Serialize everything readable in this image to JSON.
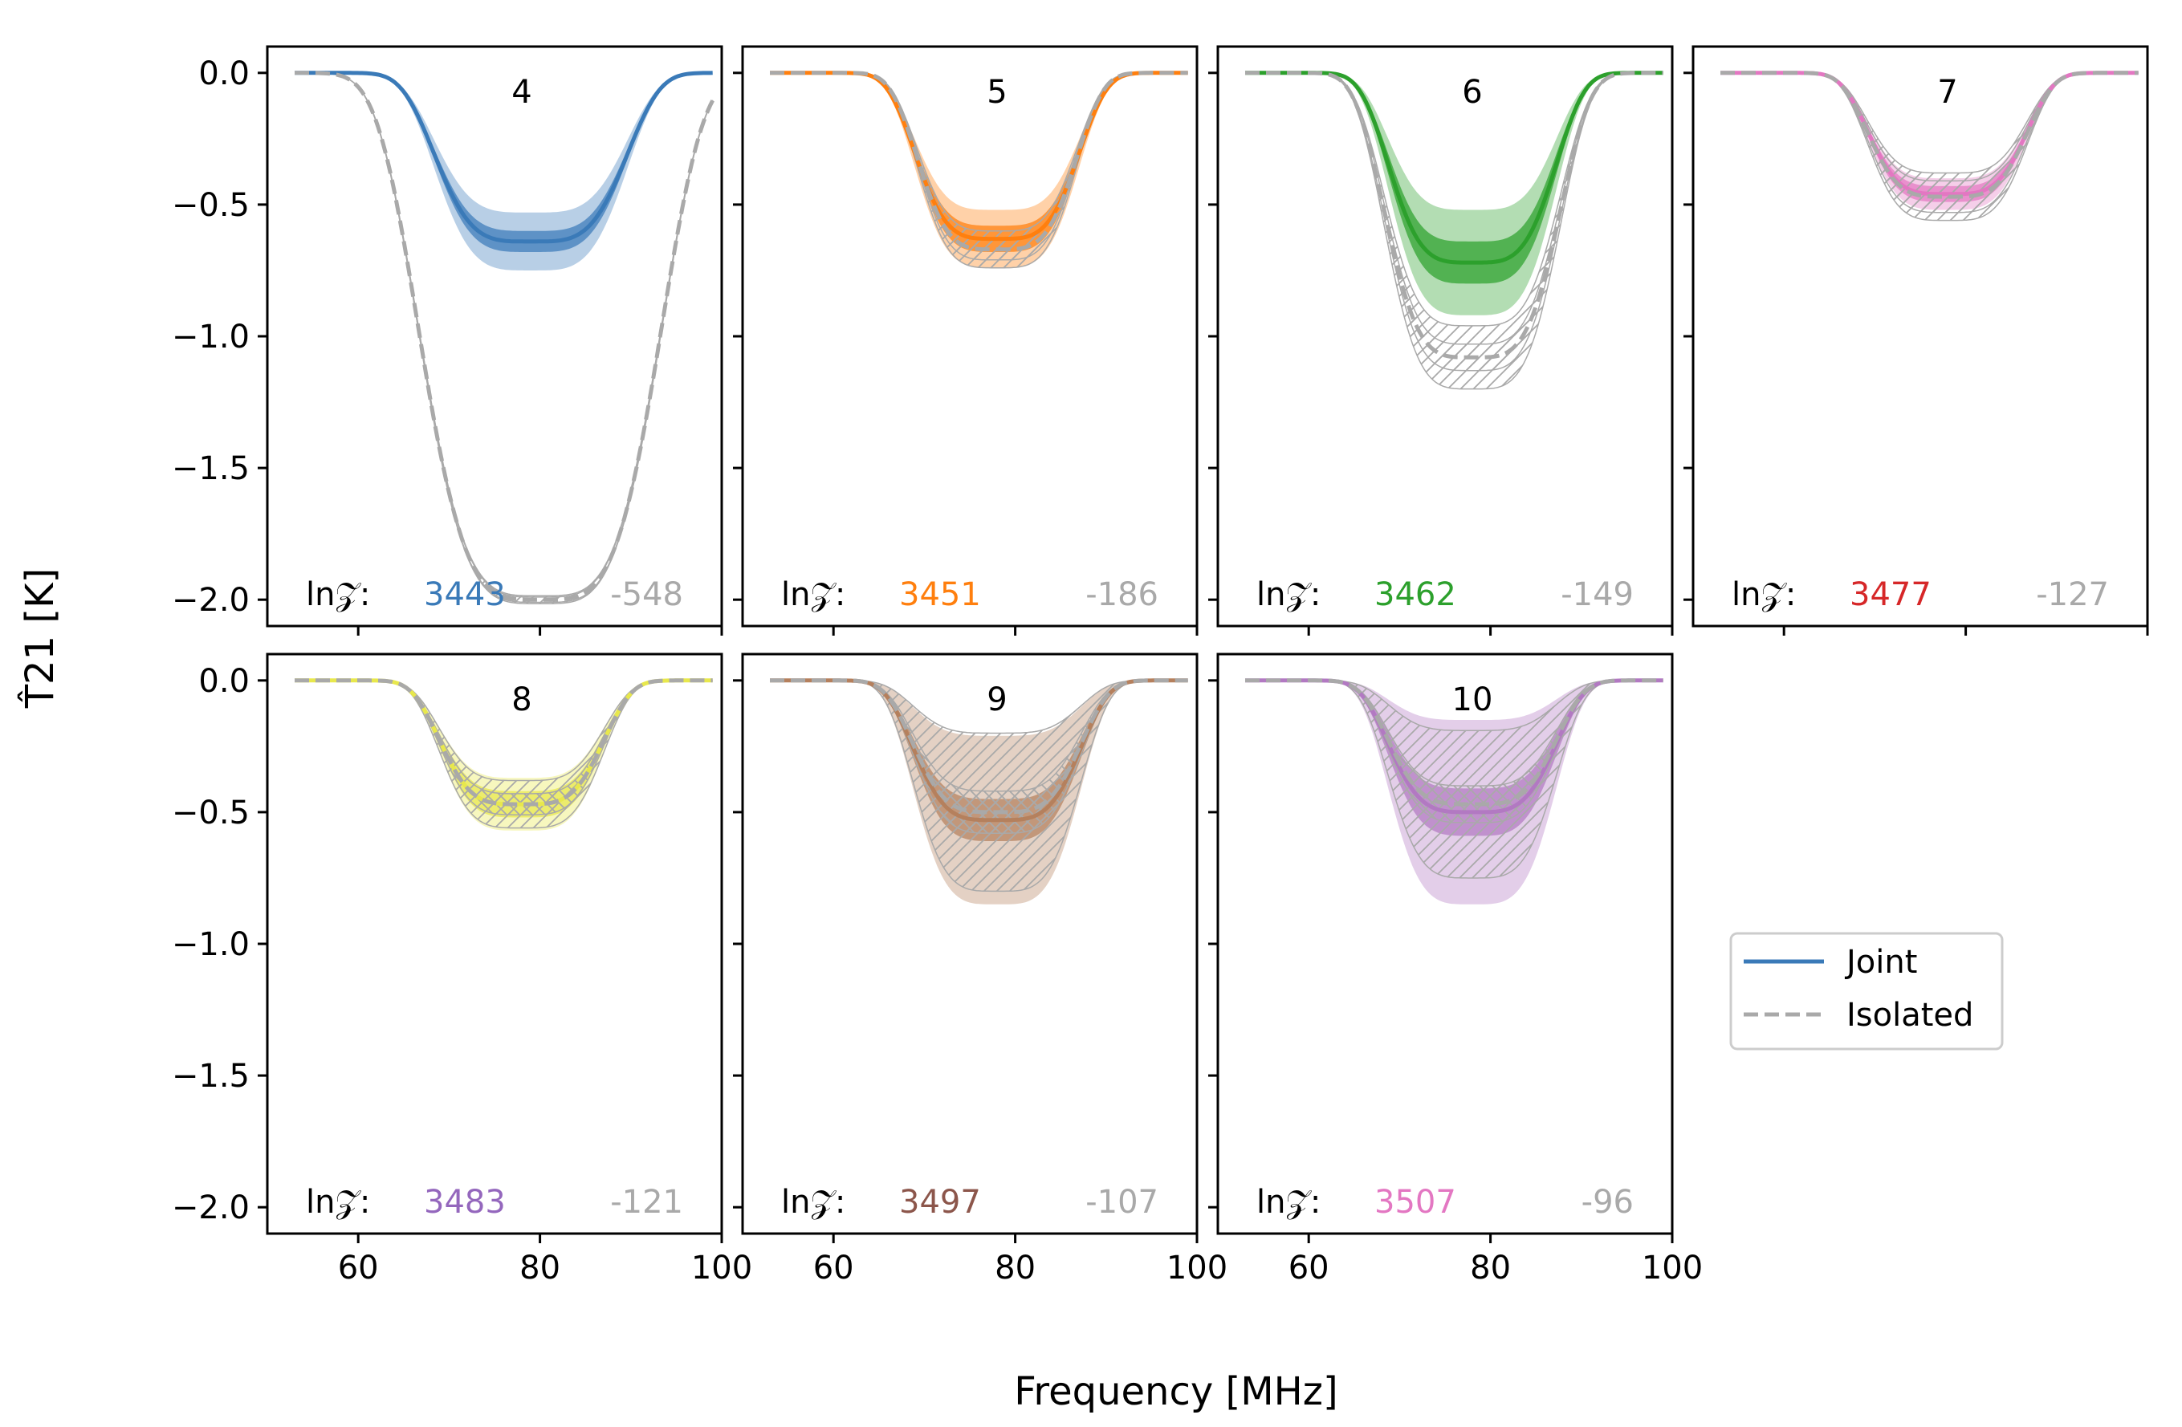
{
  "chart_data": {
    "type": "line",
    "xlabel": "Frequency [MHz]",
    "ylabel": "T̂21 [K]",
    "xlim": [
      50,
      100
    ],
    "ylim": [
      -2.1,
      0.1
    ],
    "xticks": [
      60,
      80,
      100
    ],
    "yticks": [
      0.0,
      -0.5,
      -1.0,
      -1.5,
      -2.0
    ],
    "xtick_labels": [
      "60",
      "80",
      "100"
    ],
    "ytick_labels": [
      "0.0",
      "−0.5",
      "−1.0",
      "−1.5",
      "−2.0"
    ],
    "evidence_label": "ln𝒵:",
    "legend": [
      {
        "label": "Joint",
        "style": "solid",
        "color": "#3a7ab8"
      },
      {
        "label": "Isolated",
        "style": "dashed",
        "color": "#a9a9a9"
      }
    ],
    "isolated_color": "#a9a9a9",
    "panels": [
      {
        "label": "4",
        "color": "#3a7ab8",
        "joint": {
          "depth": 0.64,
          "center": 79.0,
          "width": 11.5,
          "band1": 0.04,
          "band2": 0.11
        },
        "isolated": {
          "depth": 2.0,
          "center": 80.0,
          "width": 14.5,
          "band1": 0.01,
          "band2": 0.015
        },
        "lnZ_joint": "3443",
        "lnZ_isolated": "-548",
        "joint_text_color": "#3a7ab8"
      },
      {
        "label": "5",
        "color": "#ff7f0e",
        "joint": {
          "depth": 0.63,
          "center": 78.0,
          "width": 9.8,
          "band1": 0.05,
          "band2": 0.11
        },
        "isolated": {
          "depth": 0.67,
          "center": 78.0,
          "width": 9.5,
          "band1": 0.04,
          "band2": 0.07
        },
        "lnZ_joint": "3451",
        "lnZ_isolated": "-186",
        "joint_text_color": "#ff7f0e"
      },
      {
        "label": "6",
        "color": "#2ca02c",
        "joint": {
          "depth": 0.72,
          "center": 78.0,
          "width": 10.0,
          "band1": 0.08,
          "band2": 0.2
        },
        "isolated": {
          "depth": 1.08,
          "center": 78.0,
          "width": 10.5,
          "band1": 0.05,
          "band2": 0.12
        },
        "lnZ_joint": "3462",
        "lnZ_isolated": "-149",
        "joint_text_color": "#2ca02c"
      },
      {
        "label": "7",
        "color": "#e377c2",
        "joint": {
          "depth": 0.46,
          "center": 78.0,
          "width": 9.5,
          "band1": 0.03,
          "band2": 0.06
        },
        "isolated": {
          "depth": 0.47,
          "center": 78.0,
          "width": 9.5,
          "band1": 0.06,
          "band2": 0.09
        },
        "lnZ_joint": "3477",
        "lnZ_isolated": "-127",
        "joint_text_color": "#d62728"
      },
      {
        "label": "8",
        "color": "#e8e84c",
        "joint": {
          "depth": 0.47,
          "center": 78.0,
          "width": 9.8,
          "band1": 0.05,
          "band2": 0.1
        },
        "isolated": {
          "depth": 0.47,
          "center": 78.0,
          "width": 9.8,
          "band1": 0.04,
          "band2": 0.09
        },
        "lnZ_joint": "3483",
        "lnZ_isolated": "-121",
        "joint_text_color": "#9467bd"
      },
      {
        "label": "9",
        "color": "#b5805d",
        "joint": {
          "depth": 0.53,
          "center": 78.0,
          "width": 10.0,
          "band1": 0.08,
          "band2": 0.32
        },
        "isolated": {
          "depth": 0.5,
          "center": 78.0,
          "width": 10.0,
          "band1": 0.08,
          "band2": 0.3
        },
        "lnZ_joint": "3497",
        "lnZ_isolated": "-107",
        "joint_text_color": "#8c564b"
      },
      {
        "label": "10",
        "color": "#b279c2",
        "joint": {
          "depth": 0.5,
          "center": 78.0,
          "width": 10.0,
          "band1": 0.09,
          "band2": 0.35
        },
        "isolated": {
          "depth": 0.47,
          "center": 78.0,
          "width": 10.0,
          "band1": 0.07,
          "band2": 0.28
        },
        "lnZ_joint": "3507",
        "lnZ_isolated": "-96",
        "joint_text_color": "#e377c2"
      }
    ]
  }
}
